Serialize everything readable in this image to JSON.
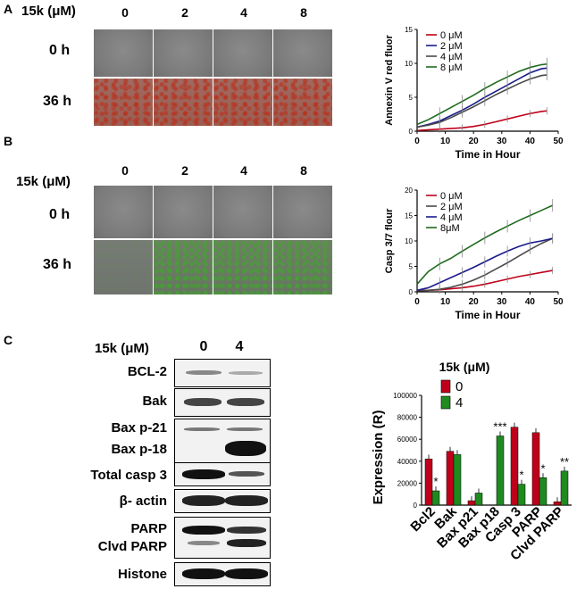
{
  "panels": {
    "a": "A",
    "b": "B",
    "c": "C"
  },
  "panel_a": {
    "conc_label": "15k (μM)",
    "concentrations": [
      "0",
      "2",
      "4",
      "8"
    ],
    "rows": [
      "0 h",
      "36 h"
    ]
  },
  "panel_b": {
    "conc_label": "15k (μM)",
    "concentrations": [
      "0",
      "2",
      "4",
      "8"
    ],
    "rows": [
      "0 h",
      "36 h"
    ]
  },
  "panel_c": {
    "conc_label": "15k (μM)",
    "lanes": [
      "0",
      "4"
    ],
    "blots": [
      "BCL-2",
      "Bak",
      "Bax p-21",
      "Bax p-18",
      "Total casp 3",
      "β- actin",
      "PARP",
      "Clvd PARP",
      "Histone"
    ]
  },
  "chart_data": [
    {
      "type": "line",
      "title": "",
      "xlabel": "Time in Hour",
      "ylabel": "Annexin V red fluor",
      "xlim": [
        0,
        50
      ],
      "ylim": [
        0,
        15
      ],
      "xticks": [
        "0",
        "10",
        "20",
        "30",
        "40",
        "50"
      ],
      "yticks": [
        "0",
        "5",
        "10",
        "15"
      ],
      "x": [
        0,
        4,
        8,
        12,
        16,
        20,
        24,
        28,
        32,
        36,
        40,
        44,
        46
      ],
      "series": [
        {
          "name": "0 μM",
          "color": "#c0001a",
          "values": [
            0.1,
            0.2,
            0.3,
            0.4,
            0.5,
            0.7,
            1.0,
            1.4,
            1.8,
            2.2,
            2.6,
            2.9,
            3.0
          ]
        },
        {
          "name": "2 μM",
          "color": "#1a1a8c",
          "values": [
            0.6,
            1.0,
            1.5,
            2.3,
            3.1,
            4.0,
            5.0,
            5.9,
            6.8,
            7.7,
            8.6,
            9.2,
            9.3
          ]
        },
        {
          "name": "4 μM",
          "color": "#4a4a4a",
          "values": [
            0.6,
            0.9,
            1.3,
            2.0,
            2.8,
            3.6,
            4.5,
            5.4,
            6.2,
            7.0,
            7.7,
            8.2,
            8.3
          ]
        },
        {
          "name": "8 μM",
          "color": "#1f6b1f",
          "values": [
            1.0,
            1.7,
            2.6,
            3.5,
            4.4,
            5.3,
            6.3,
            7.2,
            8.0,
            8.8,
            9.4,
            9.8,
            9.9
          ]
        }
      ]
    },
    {
      "type": "line",
      "title": "",
      "xlabel": "Time in Hour",
      "ylabel": "Casp 3/7 flour",
      "xlim": [
        0,
        50
      ],
      "ylim": [
        0,
        20
      ],
      "xticks": [
        "0",
        "10",
        "20",
        "30",
        "40",
        "50"
      ],
      "yticks": [
        "0",
        "5",
        "10",
        "15",
        "20"
      ],
      "x": [
        0,
        4,
        8,
        12,
        16,
        20,
        24,
        28,
        32,
        36,
        40,
        44,
        48
      ],
      "series": [
        {
          "name": "0 μM",
          "color": "#c0001a",
          "values": [
            0.2,
            0.3,
            0.4,
            0.6,
            0.8,
            1.1,
            1.5,
            2.0,
            2.5,
            3.0,
            3.4,
            3.8,
            4.2
          ]
        },
        {
          "name": "2 μM",
          "color": "#4a4a4a",
          "values": [
            0.2,
            0.3,
            0.5,
            0.9,
            1.5,
            2.3,
            3.3,
            4.5,
            5.7,
            7.0,
            8.3,
            9.5,
            10.5
          ]
        },
        {
          "name": "4 μM",
          "color": "#1a1a8c",
          "values": [
            0.3,
            0.8,
            1.8,
            2.8,
            3.8,
            4.8,
            5.9,
            7.0,
            8.0,
            8.9,
            9.6,
            10.0,
            10.5
          ]
        },
        {
          "name": "8μM",
          "color": "#1f6b1f",
          "values": [
            1.5,
            4.0,
            5.5,
            6.6,
            8.0,
            9.3,
            10.6,
            11.8,
            12.9,
            14.0,
            15.0,
            16.0,
            17.0
          ]
        }
      ]
    },
    {
      "type": "bar",
      "title": "15k (μM)",
      "xlabel": "",
      "ylabel": "Expression (R)",
      "ylim": [
        0,
        100000
      ],
      "yticks": [
        "0",
        "20000",
        "40000",
        "60000",
        "80000",
        "100000"
      ],
      "categories": [
        "Bcl2",
        "Bak",
        "Bax p21",
        "Bax p18",
        "Casp 3",
        "PARP",
        "Clvd PARP"
      ],
      "series": [
        {
          "name": "0",
          "color": "#c0001a",
          "values": [
            42000,
            49000,
            4000,
            0,
            71000,
            66000,
            3000
          ]
        },
        {
          "name": "4",
          "color": "#1f8a1f",
          "values": [
            13000,
            46000,
            11000,
            63000,
            19000,
            25000,
            31000
          ]
        }
      ],
      "annotations": [
        "*",
        "",
        "",
        "***",
        "*",
        "*",
        "**"
      ]
    }
  ]
}
